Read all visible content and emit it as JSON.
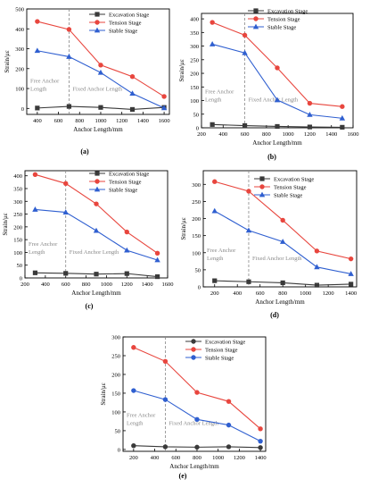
{
  "colors": {
    "excavation": "#3a3a3a",
    "tension": "#e8463e",
    "stable": "#2f5fd0",
    "divider": "#888888"
  },
  "chart_data": [
    {
      "panel_label": "(a)",
      "type": "line",
      "xlabel": "Anchor Length/mm",
      "ylabel": "Strain/με",
      "xlim": [
        300,
        1650
      ],
      "ylim": [
        -30,
        500
      ],
      "xticks": [
        400,
        600,
        800,
        1000,
        1200,
        1400,
        1600
      ],
      "yticks": [
        0,
        100,
        200,
        300,
        400,
        500
      ],
      "divider_x": 700,
      "annotations": {
        "free": [
          "Free Anchor",
          "Length"
        ],
        "fixed": [
          "Fixed Anchor Length"
        ]
      },
      "legend_position": "top-right",
      "series": [
        {
          "name": "Excavation Stage",
          "color_key": "excavation",
          "marker": "square",
          "x": [
            400,
            700,
            1000,
            1300,
            1600
          ],
          "y": [
            2,
            10,
            5,
            -5,
            5
          ]
        },
        {
          "name": "Tension Stage",
          "color_key": "tension",
          "marker": "circle",
          "x": [
            400,
            700,
            1000,
            1300,
            1600
          ],
          "y": [
            437,
            397,
            218,
            160,
            60
          ]
        },
        {
          "name": "Stable Stage",
          "color_key": "stable",
          "marker": "triangle",
          "x": [
            400,
            700,
            1000,
            1300,
            1600
          ],
          "y": [
            290,
            260,
            180,
            75,
            2
          ]
        }
      ]
    },
    {
      "panel_label": "(b)",
      "type": "line",
      "xlabel": "Anchor Length/mm",
      "ylabel": "Strain/με",
      "xlim": [
        200,
        1600
      ],
      "ylim": [
        0,
        420
      ],
      "xticks": [
        200,
        400,
        600,
        800,
        1000,
        1200,
        1400,
        1600
      ],
      "yticks": [
        0,
        50,
        100,
        150,
        200,
        250,
        300,
        350,
        400
      ],
      "divider_x": 600,
      "annotations": {
        "free": [
          "Free Anchor",
          "Length"
        ],
        "fixed": [
          "Fixed Anchor Length"
        ]
      },
      "legend_position": "top-right",
      "series": [
        {
          "name": "Excavation Stage",
          "color_key": "excavation",
          "marker": "square",
          "x": [
            300,
            600,
            900,
            1200,
            1500
          ],
          "y": [
            12,
            8,
            5,
            3,
            2
          ]
        },
        {
          "name": "Tension Stage",
          "color_key": "tension",
          "marker": "circle",
          "x": [
            300,
            600,
            900,
            1200,
            1500
          ],
          "y": [
            387,
            340,
            220,
            90,
            78
          ]
        },
        {
          "name": "Stable Stage",
          "color_key": "stable",
          "marker": "triangle",
          "x": [
            300,
            600,
            900,
            1200,
            1500
          ],
          "y": [
            307,
            275,
            102,
            48,
            35
          ]
        }
      ]
    },
    {
      "panel_label": "(c)",
      "type": "line",
      "xlabel": "Anchor Length/mm",
      "ylabel": "Strain/με",
      "xlim": [
        200,
        1600
      ],
      "ylim": [
        0,
        420
      ],
      "xticks": [
        200,
        400,
        600,
        800,
        1000,
        1200,
        1400,
        1600
      ],
      "yticks": [
        0,
        50,
        100,
        150,
        200,
        250,
        300,
        350,
        400
      ],
      "divider_x": 600,
      "annotations": {
        "free": [
          "Free Anchor",
          "Length"
        ],
        "fixed": [
          "Fixed Anchor Length"
        ]
      },
      "legend_position": "top-right",
      "series": [
        {
          "name": "Excavation Stage",
          "color_key": "excavation",
          "marker": "square",
          "x": [
            300,
            600,
            900,
            1200,
            1500
          ],
          "y": [
            20,
            18,
            15,
            17,
            5
          ]
        },
        {
          "name": "Tension Stage",
          "color_key": "tension",
          "marker": "circle",
          "x": [
            300,
            600,
            900,
            1200,
            1500
          ],
          "y": [
            405,
            370,
            290,
            180,
            97
          ]
        },
        {
          "name": "Stable Stage",
          "color_key": "stable",
          "marker": "triangle",
          "x": [
            300,
            600,
            900,
            1200,
            1500
          ],
          "y": [
            268,
            257,
            185,
            108,
            70
          ]
        }
      ]
    },
    {
      "panel_label": "(d)",
      "type": "line",
      "xlabel": "Anchor Length/mm",
      "ylabel": "Strain/με",
      "xlim": [
        100,
        1450
      ],
      "ylim": [
        0,
        340
      ],
      "xticks": [
        200,
        400,
        600,
        800,
        1000,
        1200,
        1400
      ],
      "yticks": [
        0,
        50,
        100,
        150,
        200,
        250,
        300
      ],
      "divider_x": 500,
      "annotations": {
        "free": [
          "Free Anchor",
          "Length"
        ],
        "fixed": [
          "Fixed Anchor Length"
        ]
      },
      "legend_position": "top-right",
      "series": [
        {
          "name": "Excavation Stage",
          "color_key": "excavation",
          "marker": "square",
          "x": [
            200,
            500,
            800,
            1100,
            1400
          ],
          "y": [
            18,
            15,
            12,
            5,
            8
          ]
        },
        {
          "name": "Tension Stage",
          "color_key": "tension",
          "marker": "circle",
          "x": [
            200,
            500,
            800,
            1100,
            1400
          ],
          "y": [
            308,
            280,
            195,
            105,
            82
          ]
        },
        {
          "name": "Stable Stage",
          "color_key": "stable",
          "marker": "triangle",
          "x": [
            200,
            500,
            800,
            1100,
            1400
          ],
          "y": [
            222,
            165,
            132,
            58,
            38
          ]
        }
      ]
    },
    {
      "panel_label": "(e)",
      "type": "line",
      "xlabel": "Anchor Length/mm",
      "ylabel": "Strain/με",
      "xlim": [
        100,
        1450
      ],
      "ylim": [
        -5,
        300
      ],
      "xticks": [
        200,
        400,
        600,
        800,
        1000,
        1200,
        1400
      ],
      "yticks": [
        0,
        50,
        100,
        150,
        200,
        250,
        300
      ],
      "divider_x": 500,
      "annotations": {
        "free": [
          "Free Anchor",
          "Length"
        ],
        "fixed": [
          "Fixed Anchor Length"
        ]
      },
      "legend_position": "top-right",
      "series": [
        {
          "name": "Excavation Stage",
          "color_key": "excavation",
          "marker": "circle",
          "x": [
            200,
            500,
            800,
            1100,
            1400
          ],
          "y": [
            10,
            7,
            6,
            7,
            5
          ]
        },
        {
          "name": "Tension Stage",
          "color_key": "tension",
          "marker": "circle",
          "x": [
            200,
            500,
            800,
            1100,
            1400
          ],
          "y": [
            272,
            235,
            152,
            128,
            55
          ]
        },
        {
          "name": "Stable Stage",
          "color_key": "stable",
          "marker": "circle",
          "x": [
            200,
            500,
            800,
            1100,
            1400
          ],
          "y": [
            157,
            133,
            80,
            65,
            22
          ]
        }
      ]
    }
  ]
}
